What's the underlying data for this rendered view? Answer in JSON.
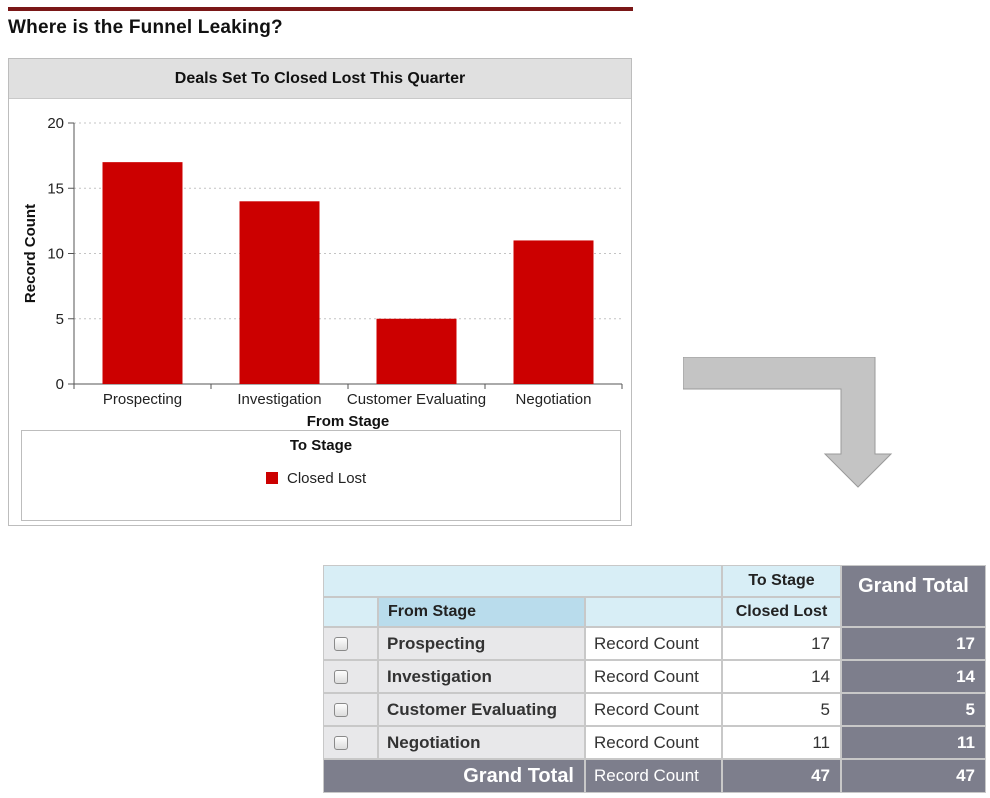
{
  "page_title": "Where is the Funnel Leaking?",
  "chart_data": {
    "type": "bar",
    "title": "Deals Set To Closed Lost This Quarter",
    "xlabel": "From Stage",
    "ylabel": "Record Count",
    "categories": [
      "Prospecting",
      "Investigation",
      "Customer Evaluating",
      "Negotiation"
    ],
    "series": [
      {
        "name": "Closed Lost",
        "values": [
          17,
          14,
          5,
          11
        ],
        "color": "#cc0000"
      }
    ],
    "ylim": [
      0,
      20
    ],
    "yticks": [
      0,
      5,
      10,
      15,
      20
    ],
    "grid": true,
    "legend": {
      "title": "To Stage",
      "placement": "bottom"
    }
  },
  "pivot": {
    "to_stage_label": "To Stage",
    "grand_total_label": "Grand Total",
    "from_stage_label": "From Stage",
    "closed_lost_label": "Closed Lost",
    "rows": [
      {
        "stage": "Prospecting",
        "measure": "Record Count",
        "closed_lost": "17",
        "total": "17"
      },
      {
        "stage": "Investigation",
        "measure": "Record Count",
        "closed_lost": "14",
        "total": "14"
      },
      {
        "stage": "Customer Evaluating",
        "measure": "Record Count",
        "closed_lost": "5",
        "total": "5"
      },
      {
        "stage": "Negotiation",
        "measure": "Record Count",
        "closed_lost": "11",
        "total": "11"
      }
    ],
    "grand_total_row": {
      "label": "Grand Total",
      "measure": "Record Count",
      "closed_lost": "47",
      "total": "47"
    }
  },
  "colors": {
    "bar": "#cc0000",
    "title_rule": "#7a1717",
    "pivot_total": "#7d7e8c",
    "pivot_header": "#d8eef6"
  }
}
